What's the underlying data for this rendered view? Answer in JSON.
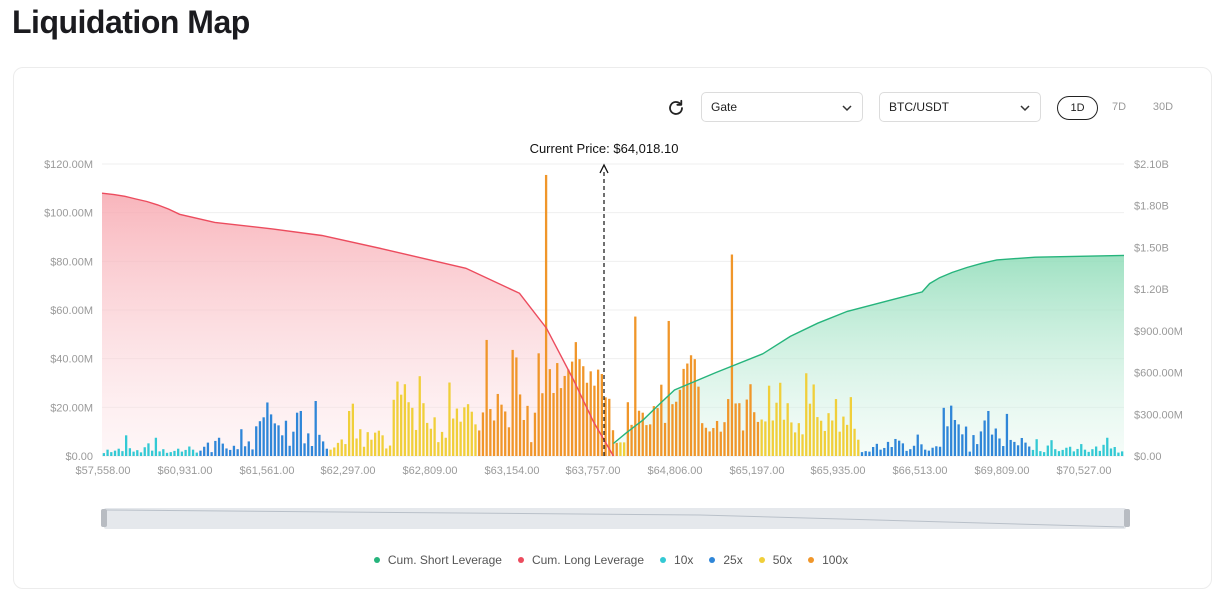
{
  "page": {
    "title": "Liquidation Map"
  },
  "controls": {
    "exchange": "Gate",
    "pair": "BTC/USDT",
    "ranges": [
      "1D",
      "7D",
      "30D"
    ],
    "active_range": "1D",
    "icons": {
      "refresh": "refresh-icon",
      "dropdown": "chevron-down-icon"
    }
  },
  "legend": [
    {
      "label": "Cum. Short Leverage",
      "color": "#26b47c"
    },
    {
      "label": "Cum. Long Leverage",
      "color": "#ec4c5e"
    },
    {
      "label": "10x",
      "color": "#33c9d4"
    },
    {
      "label": "25x",
      "color": "#2f86d8"
    },
    {
      "label": "50x",
      "color": "#f0cf3a"
    },
    {
      "label": "100x",
      "color": "#f0962a"
    }
  ],
  "chart_data": {
    "type": "bar",
    "current_price_label": "Current Price: $64,018.10",
    "x_tick_labels": [
      "$57,558.00",
      "$60,931.00",
      "$61,561.00",
      "$62,297.00",
      "$62,809.00",
      "$63,154.00",
      "$63,757.00",
      "$64,806.00",
      "$65,197.00",
      "$65,935.00",
      "$66,513.00",
      "$69,809.00",
      "$70,527.00"
    ],
    "y_left": {
      "ticks": [
        "$0.00",
        "$20.00M",
        "$40.00M",
        "$60.00M",
        "$80.00M",
        "$100.00M",
        "$120.00M"
      ],
      "max": 120
    },
    "y_right": {
      "ticks": [
        "$0.00",
        "$300.00M",
        "$600.00M",
        "$900.00M",
        "$1.20B",
        "$1.50B",
        "$1.80B",
        "$2.10B"
      ],
      "max": 2100
    },
    "grid": true,
    "bars": [
      [
        "10x",
        1.2
      ],
      [
        "10x",
        2.6
      ],
      [
        "10x",
        1.6
      ],
      [
        "10x",
        2.2
      ],
      [
        "10x",
        3.0
      ],
      [
        "10x",
        2.0
      ],
      [
        "10x",
        8.5
      ],
      [
        "10x",
        3.2
      ],
      [
        "10x",
        1.8
      ],
      [
        "10x",
        2.4
      ],
      [
        "10x",
        1.5
      ],
      [
        "10x",
        3.6
      ],
      [
        "10x",
        5.2
      ],
      [
        "10x",
        2.2
      ],
      [
        "10x",
        7.5
      ],
      [
        "10x",
        1.9
      ],
      [
        "10x",
        2.8
      ],
      [
        "10x",
        1.3
      ],
      [
        "10x",
        1.6
      ],
      [
        "10x",
        2.1
      ],
      [
        "10x",
        3.0
      ],
      [
        "10x",
        1.8
      ],
      [
        "10x",
        2.5
      ],
      [
        "10x",
        3.9
      ],
      [
        "10x",
        2.6
      ],
      [
        "10x",
        1.4
      ],
      [
        "25x",
        2.2
      ],
      [
        "25x",
        3.8
      ],
      [
        "25x",
        5.5
      ],
      [
        "25x",
        1.6
      ],
      [
        "25x",
        6.2
      ],
      [
        "25x",
        7.5
      ],
      [
        "25x",
        5.1
      ],
      [
        "25x",
        3.1
      ],
      [
        "25x",
        2.5
      ],
      [
        "25x",
        4.2
      ],
      [
        "25x",
        2.8
      ],
      [
        "25x",
        11.0
      ],
      [
        "25x",
        4.0
      ],
      [
        "25x",
        6.0
      ],
      [
        "25x",
        2.7
      ],
      [
        "25x",
        12.2
      ],
      [
        "25x",
        14.3
      ],
      [
        "25x",
        15.9
      ],
      [
        "25x",
        22.0
      ],
      [
        "25x",
        17.1
      ],
      [
        "25x",
        13.4
      ],
      [
        "25x",
        12.6
      ],
      [
        "25x",
        8.5
      ],
      [
        "25x",
        14.5
      ],
      [
        "25x",
        4.2
      ],
      [
        "25x",
        10.0
      ],
      [
        "25x",
        17.8
      ],
      [
        "25x",
        18.5
      ],
      [
        "25x",
        5.2
      ],
      [
        "25x",
        9.3
      ],
      [
        "25x",
        4.1
      ],
      [
        "25x",
        22.6
      ],
      [
        "25x",
        8.7
      ],
      [
        "25x",
        6.0
      ],
      [
        "25x",
        3.0
      ],
      [
        "50x",
        2.6
      ],
      [
        "50x",
        3.5
      ],
      [
        "50x",
        5.4
      ],
      [
        "50x",
        6.8
      ],
      [
        "50x",
        4.9
      ],
      [
        "50x",
        18.5
      ],
      [
        "50x",
        21.5
      ],
      [
        "50x",
        7.2
      ],
      [
        "50x",
        11.0
      ],
      [
        "50x",
        3.8
      ],
      [
        "50x",
        9.8
      ],
      [
        "50x",
        6.7
      ],
      [
        "50x",
        9.6
      ],
      [
        "50x",
        10.4
      ],
      [
        "50x",
        8.5
      ],
      [
        "50x",
        3.1
      ],
      [
        "50x",
        4.3
      ],
      [
        "50x",
        23.1
      ],
      [
        "50x",
        30.6
      ],
      [
        "50x",
        25.2
      ],
      [
        "50x",
        29.5
      ],
      [
        "50x",
        22.1
      ],
      [
        "50x",
        19.8
      ],
      [
        "50x",
        10.7
      ],
      [
        "50x",
        32.8
      ],
      [
        "50x",
        21.7
      ],
      [
        "50x",
        13.6
      ],
      [
        "50x",
        11.2
      ],
      [
        "50x",
        15.9
      ],
      [
        "50x",
        5.7
      ],
      [
        "50x",
        9.9
      ],
      [
        "50x",
        7.5
      ],
      [
        "50x",
        30.2
      ],
      [
        "50x",
        15.4
      ],
      [
        "50x",
        19.5
      ],
      [
        "50x",
        14.1
      ],
      [
        "50x",
        20.0
      ],
      [
        "50x",
        21.3
      ],
      [
        "50x",
        18.2
      ],
      [
        "50x",
        13.0
      ],
      [
        "100x",
        10.5
      ],
      [
        "100x",
        17.9
      ],
      [
        "100x",
        47.7
      ],
      [
        "100x",
        19.3
      ],
      [
        "100x",
        14.6
      ],
      [
        "100x",
        25.5
      ],
      [
        "100x",
        21.1
      ],
      [
        "100x",
        18.3
      ],
      [
        "100x",
        11.8
      ],
      [
        "100x",
        43.6
      ],
      [
        "100x",
        40.5
      ],
      [
        "100x",
        25.3
      ],
      [
        "100x",
        14.8
      ],
      [
        "100x",
        20.6
      ],
      [
        "100x",
        5.7
      ],
      [
        "100x",
        17.8
      ],
      [
        "100x",
        42.2
      ],
      [
        "100x",
        25.8
      ],
      [
        "100x",
        115.5
      ],
      [
        "100x",
        35.7
      ],
      [
        "100x",
        25.9
      ],
      [
        "100x",
        38.2
      ],
      [
        "100x",
        27.9
      ],
      [
        "100x",
        32.9
      ],
      [
        "100x",
        35.5
      ],
      [
        "100x",
        38.8
      ],
      [
        "100x",
        46.8
      ],
      [
        "100x",
        39.8
      ],
      [
        "100x",
        36.9
      ],
      [
        "100x",
        30.1
      ],
      [
        "100x",
        34.8
      ],
      [
        "100x",
        28.9
      ],
      [
        "100x",
        35.5
      ],
      [
        "100x",
        33.7
      ],
      [
        "100x",
        24.1
      ],
      [
        "100x",
        23.5
      ],
      [
        "100x",
        10.6
      ],
      [
        "100x",
        5.4
      ],
      [
        "50x",
        5.6
      ],
      [
        "50x",
        5.6
      ],
      [
        "100x",
        22.1
      ],
      [
        "100x",
        12.8
      ],
      [
        "100x",
        57.3
      ],
      [
        "100x",
        18.6
      ],
      [
        "100x",
        17.8
      ],
      [
        "100x",
        12.7
      ],
      [
        "100x",
        13.0
      ],
      [
        "100x",
        20.5
      ],
      [
        "100x",
        19.7
      ],
      [
        "100x",
        29.3
      ],
      [
        "100x",
        13.6
      ],
      [
        "100x",
        55.5
      ],
      [
        "100x",
        21.3
      ],
      [
        "100x",
        22.3
      ],
      [
        "100x",
        27.2
      ],
      [
        "100x",
        35.8
      ],
      [
        "100x",
        38.0
      ],
      [
        "100x",
        41.4
      ],
      [
        "100x",
        39.8
      ],
      [
        "100x",
        28.5
      ],
      [
        "100x",
        13.5
      ],
      [
        "100x",
        11.6
      ],
      [
        "100x",
        10.1
      ],
      [
        "100x",
        11.5
      ],
      [
        "100x",
        14.4
      ],
      [
        "100x",
        10.0
      ],
      [
        "100x",
        13.9
      ],
      [
        "100x",
        23.4
      ],
      [
        "100x",
        82.8
      ],
      [
        "100x",
        21.6
      ],
      [
        "100x",
        21.7
      ],
      [
        "100x",
        10.5
      ],
      [
        "100x",
        23.2
      ],
      [
        "100x",
        29.5
      ],
      [
        "100x",
        18.0
      ],
      [
        "100x",
        14.0
      ],
      [
        "50x",
        15.0
      ],
      [
        "50x",
        14.2
      ],
      [
        "50x",
        28.9
      ],
      [
        "50x",
        14.6
      ],
      [
        "50x",
        21.9
      ],
      [
        "50x",
        30.1
      ],
      [
        "50x",
        14.9
      ],
      [
        "50x",
        21.7
      ],
      [
        "50x",
        13.8
      ],
      [
        "50x",
        9.7
      ],
      [
        "50x",
        13.5
      ],
      [
        "50x",
        8.9
      ],
      [
        "50x",
        34.0
      ],
      [
        "50x",
        21.5
      ],
      [
        "50x",
        29.4
      ],
      [
        "50x",
        16.0
      ],
      [
        "50x",
        14.5
      ],
      [
        "50x",
        10.3
      ],
      [
        "50x",
        17.6
      ],
      [
        "50x",
        14.6
      ],
      [
        "50x",
        23.4
      ],
      [
        "50x",
        10.0
      ],
      [
        "50x",
        16.2
      ],
      [
        "50x",
        12.8
      ],
      [
        "50x",
        24.2
      ],
      [
        "50x",
        11.2
      ],
      [
        "50x",
        6.7
      ],
      [
        "25x",
        1.6
      ],
      [
        "25x",
        2.0
      ],
      [
        "25x",
        1.8
      ],
      [
        "25x",
        3.7
      ],
      [
        "25x",
        5.0
      ],
      [
        "25x",
        2.6
      ],
      [
        "25x",
        3.3
      ],
      [
        "25x",
        5.8
      ],
      [
        "25x",
        3.7
      ],
      [
        "25x",
        7.0
      ],
      [
        "25x",
        6.3
      ],
      [
        "25x",
        5.2
      ],
      [
        "25x",
        2.1
      ],
      [
        "25x",
        2.8
      ],
      [
        "25x",
        4.2
      ],
      [
        "25x",
        8.8
      ],
      [
        "25x",
        4.8
      ],
      [
        "25x",
        2.6
      ],
      [
        "25x",
        2.2
      ],
      [
        "25x",
        3.4
      ],
      [
        "25x",
        4.0
      ],
      [
        "25x",
        3.8
      ],
      [
        "25x",
        19.8
      ],
      [
        "25x",
        12.2
      ],
      [
        "25x",
        20.7
      ],
      [
        "25x",
        14.8
      ],
      [
        "25x",
        13.0
      ],
      [
        "25x",
        8.9
      ],
      [
        "25x",
        12.1
      ],
      [
        "25x",
        1.8
      ],
      [
        "25x",
        8.6
      ],
      [
        "25x",
        4.9
      ],
      [
        "25x",
        10.1
      ],
      [
        "25x",
        14.6
      ],
      [
        "25x",
        18.5
      ],
      [
        "25x",
        8.8
      ],
      [
        "25x",
        11.3
      ],
      [
        "25x",
        7.2
      ],
      [
        "25x",
        4.1
      ],
      [
        "25x",
        17.3
      ],
      [
        "25x",
        6.6
      ],
      [
        "25x",
        5.8
      ],
      [
        "25x",
        4.4
      ],
      [
        "25x",
        7.4
      ],
      [
        "25x",
        5.5
      ],
      [
        "25x",
        3.9
      ],
      [
        "10x",
        2.5
      ],
      [
        "10x",
        6.9
      ],
      [
        "10x",
        2.0
      ],
      [
        "10x",
        1.6
      ],
      [
        "10x",
        4.3
      ],
      [
        "10x",
        6.5
      ],
      [
        "10x",
        2.8
      ],
      [
        "10x",
        2.0
      ],
      [
        "10x",
        2.5
      ],
      [
        "10x",
        3.4
      ],
      [
        "10x",
        3.8
      ],
      [
        "10x",
        1.9
      ],
      [
        "10x",
        2.9
      ],
      [
        "10x",
        4.9
      ],
      [
        "10x",
        2.6
      ],
      [
        "10x",
        1.7
      ],
      [
        "10x",
        2.8
      ],
      [
        "10x",
        3.9
      ],
      [
        "10x",
        2.1
      ],
      [
        "10x",
        4.6
      ],
      [
        "10x",
        7.5
      ],
      [
        "10x",
        3.1
      ],
      [
        "10x",
        3.7
      ],
      [
        "10x",
        1.4
      ],
      [
        "10x",
        1.9
      ]
    ],
    "cum_long_leverage_points": [
      [
        57558,
        1890
      ],
      [
        58010,
        1880
      ],
      [
        58460,
        1868
      ],
      [
        58910,
        1848
      ],
      [
        59360,
        1830
      ],
      [
        59810,
        1806
      ],
      [
        60260,
        1776
      ],
      [
        60710,
        1738
      ],
      [
        61160,
        1680
      ],
      [
        61610,
        1633
      ],
      [
        62060,
        1586
      ],
      [
        62510,
        1490
      ],
      [
        62960,
        1350
      ],
      [
        63210,
        1170
      ],
      [
        63410,
        920
      ],
      [
        63610,
        550
      ],
      [
        63760,
        250
      ],
      [
        64018,
        0
      ]
    ],
    "cum_short_leverage_points": [
      [
        64018,
        90
      ],
      [
        64190,
        170
      ],
      [
        64400,
        260
      ],
      [
        64600,
        370
      ],
      [
        64800,
        475
      ],
      [
        65000,
        600
      ],
      [
        65250,
        735
      ],
      [
        65500,
        860
      ],
      [
        65750,
        955
      ],
      [
        66000,
        1040
      ],
      [
        66300,
        1120
      ],
      [
        66600,
        1180
      ],
      [
        66900,
        1240
      ],
      [
        67300,
        1282
      ],
      [
        67800,
        1320
      ],
      [
        68400,
        1356
      ],
      [
        69000,
        1386
      ],
      [
        69600,
        1410
      ],
      [
        70100,
        1430
      ],
      [
        70527,
        1443
      ]
    ]
  }
}
